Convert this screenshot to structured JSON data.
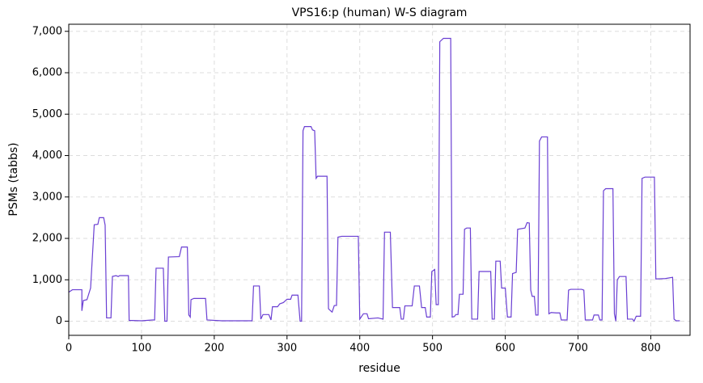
{
  "chart_data": {
    "type": "line",
    "title": "VPS16:p (human) W-S diagram",
    "xlabel": "residue",
    "ylabel": "PSMs (tabbs)",
    "color": "#6a3fd3",
    "grid": true,
    "x": [
      0,
      5,
      18,
      18,
      20,
      25,
      30,
      35,
      40,
      42,
      48,
      50,
      52,
      58,
      60,
      65,
      68,
      70,
      82,
      83,
      100,
      115,
      118,
      120,
      130,
      132,
      135,
      137,
      152,
      155,
      163,
      165,
      167,
      168,
      172,
      188,
      190,
      210,
      252,
      254,
      262,
      264,
      267,
      275,
      278,
      280,
      287,
      290,
      295,
      300,
      305,
      307,
      315,
      318,
      320,
      322,
      324,
      333,
      335,
      338,
      340,
      342,
      355,
      357,
      360,
      362,
      365,
      368,
      370,
      375,
      398,
      400,
      405,
      410,
      412,
      425,
      432,
      434,
      442,
      445,
      455,
      457,
      460,
      462,
      472,
      475,
      482,
      485,
      490,
      492,
      497,
      499,
      503,
      505,
      508,
      510,
      515,
      525,
      527,
      530,
      532,
      535,
      537,
      542,
      544,
      547,
      552,
      554,
      562,
      564,
      580,
      582,
      585,
      587,
      593,
      595,
      600,
      603,
      608,
      610,
      615,
      617,
      627,
      630,
      633,
      635,
      637,
      640,
      642,
      645,
      647,
      650,
      658,
      660,
      663,
      670,
      675,
      677,
      685,
      687,
      690,
      705,
      708,
      710,
      720,
      722,
      728,
      730,
      733,
      735,
      738,
      748,
      750,
      752,
      754,
      757,
      766,
      768,
      775,
      777,
      780,
      786,
      788,
      792,
      805,
      807,
      820,
      830,
      832,
      835,
      840
    ],
    "values": [
      700,
      760,
      760,
      250,
      500,
      520,
      800,
      2330,
      2340,
      2500,
      2500,
      2320,
      80,
      80,
      1080,
      1100,
      1080,
      1100,
      1100,
      20,
      10,
      30,
      30,
      1280,
      1280,
      0,
      0,
      1550,
      1560,
      1790,
      1790,
      150,
      100,
      520,
      550,
      550,
      30,
      10,
      10,
      850,
      850,
      50,
      160,
      160,
      30,
      350,
      350,
      420,
      450,
      530,
      530,
      630,
      630,
      0,
      0,
      4600,
      4700,
      4700,
      4620,
      4600,
      3450,
      3500,
      3500,
      300,
      250,
      220,
      380,
      380,
      2030,
      2050,
      2050,
      50,
      180,
      180,
      60,
      80,
      50,
      2150,
      2150,
      330,
      330,
      50,
      50,
      370,
      370,
      850,
      850,
      330,
      330,
      100,
      100,
      1200,
      1250,
      400,
      400,
      6750,
      6830,
      6830,
      100,
      110,
      160,
      160,
      650,
      650,
      2220,
      2250,
      2250,
      50,
      50,
      1200,
      1200,
      50,
      50,
      1450,
      1450,
      800,
      800,
      100,
      100,
      1150,
      1180,
      2220,
      2250,
      2380,
      2370,
      750,
      600,
      600,
      150,
      150,
      4350,
      4450,
      4450,
      180,
      210,
      200,
      200,
      30,
      30,
      750,
      770,
      770,
      750,
      30,
      30,
      150,
      150,
      30,
      30,
      3150,
      3200,
      3200,
      180,
      0,
      1000,
      1080,
      1080,
      50,
      50,
      0,
      120,
      120,
      3450,
      3480,
      3480,
      1020,
      1030,
      1060,
      50,
      10,
      10
    ],
    "xlim": [
      0,
      854
    ],
    "xticks": [
      0,
      100,
      200,
      300,
      400,
      500,
      600,
      700,
      800
    ],
    "ylim": [
      -341,
      7171
    ],
    "yticks": [
      0,
      {
        "value": 1000,
        "label": "1,000"
      },
      {
        "value": 2000,
        "label": "2,000"
      },
      {
        "value": 3000,
        "label": "3,000"
      },
      {
        "value": 4000,
        "label": "4,000"
      },
      {
        "value": 5000,
        "label": "5,000"
      },
      {
        "value": 6000,
        "label": "6,000"
      },
      {
        "value": 7000,
        "label": "7,000"
      }
    ]
  }
}
